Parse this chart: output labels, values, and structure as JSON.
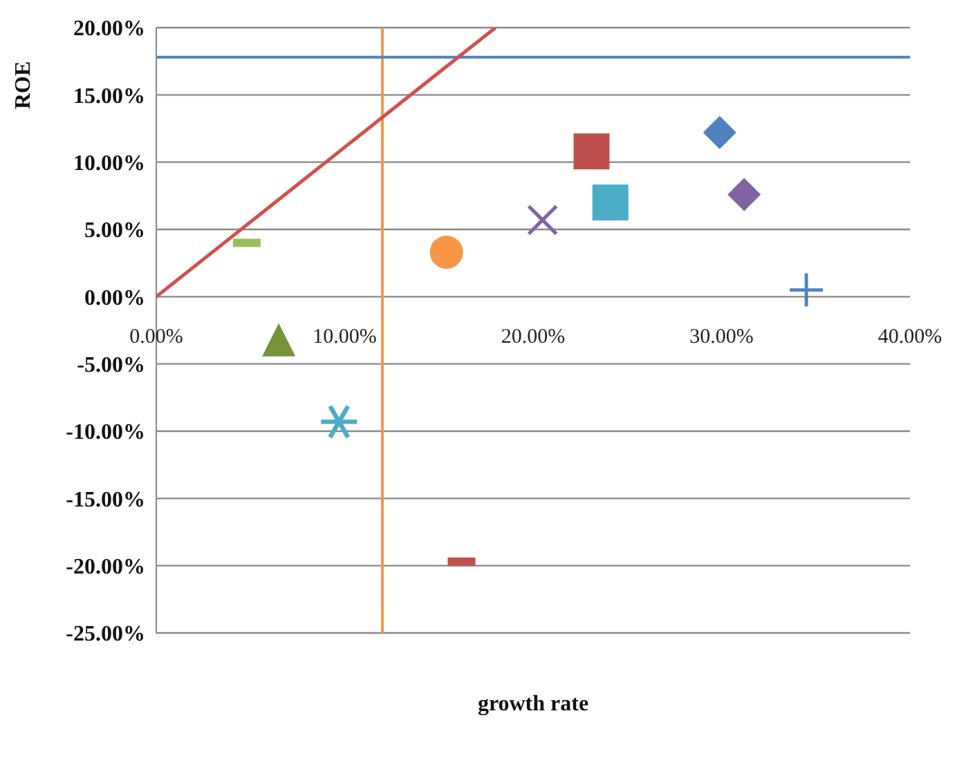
{
  "chart_data": {
    "type": "scatter",
    "xlabel": "growth rate",
    "ylabel": "ROE",
    "xlim": [
      0,
      40
    ],
    "xticks": [
      {
        "value": 0,
        "label": "0.00%"
      },
      {
        "value": 10,
        "label": "10.00%"
      },
      {
        "value": 20,
        "label": "20.00%"
      },
      {
        "value": 30,
        "label": "30.00%"
      },
      {
        "value": 40,
        "label": "40.00%"
      }
    ],
    "ylim": [
      -25,
      20
    ],
    "yticks": [
      {
        "value": -25,
        "label": "-25.00%"
      },
      {
        "value": -20,
        "label": "-20.00%"
      },
      {
        "value": -15,
        "label": "-15.00%"
      },
      {
        "value": -10,
        "label": "-10.00%"
      },
      {
        "value": -5,
        "label": "-5.00%"
      },
      {
        "value": 0,
        "label": "0.00%"
      },
      {
        "value": 5,
        "label": "5.00%"
      },
      {
        "value": 10,
        "label": "10.00%"
      },
      {
        "value": 15,
        "label": "15.00%"
      },
      {
        "value": 20,
        "label": "20.00%"
      }
    ],
    "grid": "y",
    "series": [
      {
        "color": "#9bbb59",
        "x": [
          4.8
        ],
        "values": [
          4.0
        ]
      },
      {
        "color": "#f79646",
        "marker": "circle",
        "x": [
          15.4
        ],
        "values": [
          3.3
        ]
      },
      {
        "color": "#8064a2",
        "marker": "x",
        "x": [
          20.5
        ],
        "values": [
          5.7
        ]
      },
      {
        "color": "#c0504d",
        "marker": "square",
        "x": [
          23.1
        ],
        "values": [
          10.8
        ]
      },
      {
        "color": "#4bacc6",
        "marker": "square",
        "x": [
          24.1
        ],
        "values": [
          7.0
        ]
      },
      {
        "color": "#4f81bd",
        "marker": "diamond",
        "x": [
          29.9
        ],
        "values": [
          12.2
        ]
      },
      {
        "color": "#8064a2",
        "marker": "diamond",
        "x": [
          31.2
        ],
        "values": [
          7.6
        ]
      },
      {
        "color": "#4f81bd",
        "marker": "cross",
        "x": [
          34.5
        ],
        "values": [
          0.5
        ]
      },
      {
        "color": "#77933c",
        "marker": "triangle",
        "x": [
          6.5
        ],
        "values": [
          -3.2
        ]
      },
      {
        "color": "#4bacc6",
        "marker": "star",
        "x": [
          9.7
        ],
        "values": [
          -9.3
        ]
      },
      {
        "color": "#c0504d",
        "x": [
          16.2
        ],
        "values": [
          -19.7
        ]
      },
      {
        "type": "line",
        "color": "#d0504d",
        "marker": "none",
        "line_style": "solid",
        "x": [
          0,
          18
        ],
        "values": [
          0,
          20
        ]
      }
    ],
    "ref_lines": [
      {
        "axis": "x",
        "value": 12,
        "color": "#f79646"
      },
      {
        "axis": "y",
        "value": 17.8,
        "color": "#4f81bd"
      }
    ]
  }
}
